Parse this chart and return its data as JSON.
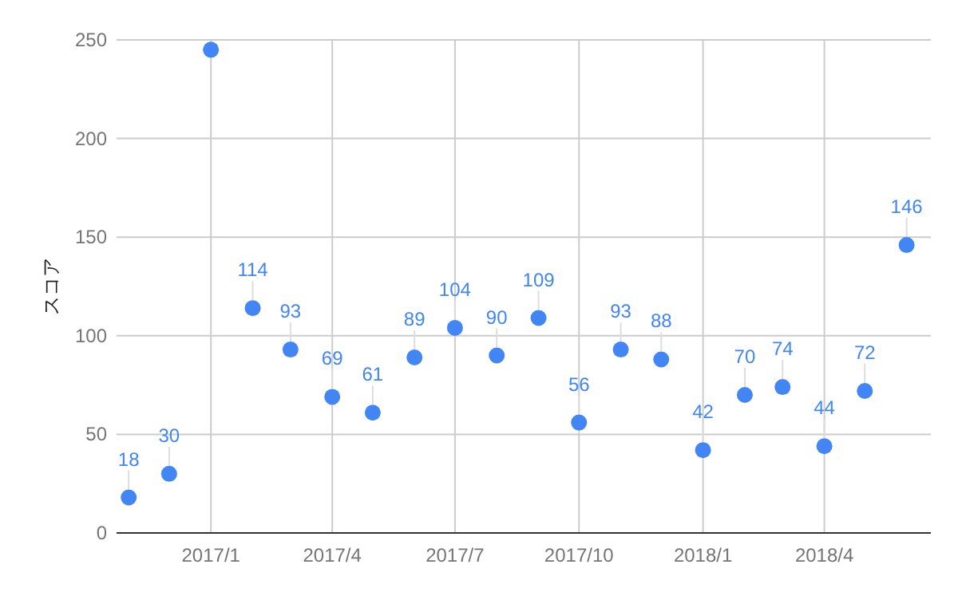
{
  "chart_data": {
    "type": "scatter",
    "ylabel": "スコア",
    "x": [
      "2016-11",
      "2016-12",
      "2017-01",
      "2017-02",
      "2017-03",
      "2017-04",
      "2017-05",
      "2017-06",
      "2017-07",
      "2017-08",
      "2017-09",
      "2017-10",
      "2017-11",
      "2017-12",
      "2018-01",
      "2018-02",
      "2018-03",
      "2018-04",
      "2018-05",
      "2018-06"
    ],
    "series": [
      {
        "color": "#4285f4",
        "values": [
          18,
          30,
          245,
          114,
          93,
          69,
          61,
          89,
          104,
          90,
          109,
          56,
          93,
          88,
          42,
          70,
          74,
          44,
          72,
          146
        ],
        "value_labels": [
          "18",
          "30",
          null,
          "114",
          "93",
          "69",
          "61",
          "89",
          "104",
          "90",
          "109",
          "56",
          "93",
          "88",
          "42",
          "70",
          "74",
          "44",
          "72",
          "146"
        ]
      }
    ],
    "xlim": [
      "2016-10-23",
      "2018-06-19"
    ],
    "xticks": [
      {
        "value": "2017-01",
        "label": "2017/1"
      },
      {
        "value": "2017-04",
        "label": "2017/4"
      },
      {
        "value": "2017-07",
        "label": "2017/7"
      },
      {
        "value": "2017-10",
        "label": "2017/10"
      },
      {
        "value": "2018-01",
        "label": "2018/1"
      },
      {
        "value": "2018-04",
        "label": "2018/4"
      }
    ],
    "ylim": [
      0,
      250
    ],
    "yticks": [
      0,
      50,
      100,
      150,
      200,
      250
    ],
    "grid": true,
    "marker": "circle"
  }
}
